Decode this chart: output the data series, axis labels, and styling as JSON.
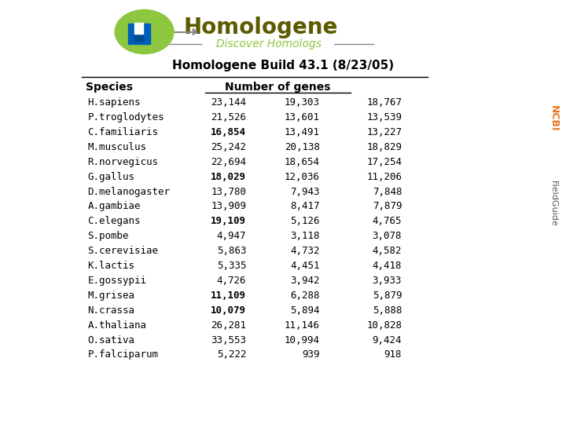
{
  "title": "Homologene Build 43.1 (8/23/05)",
  "header_species": "Species",
  "header_genes": "Number of genes",
  "species": [
    "H.sapiens",
    "P.troglodytes",
    "C.familiaris",
    "M.musculus",
    "R.norvegicus",
    "G.gallus",
    "D.melanogaster",
    "A.gambiae",
    "C.elegans",
    "S.pombe",
    "S.cerevisiae",
    "K.lactis",
    "E.gossypii",
    "M.grisea",
    "N.crassa",
    "A.thaliana",
    "O.sativa",
    "P.falciparum"
  ],
  "col1": [
    "23,144",
    "21,526",
    "16,854",
    "25,242",
    "22,694",
    "18,029",
    "13,780",
    "13,909",
    "19,109",
    "4,947",
    "5,863",
    "5,335",
    "4,726",
    "11,109",
    "10,079",
    "26,281",
    "33,553",
    "5,222"
  ],
  "col2": [
    "19,303",
    "13,601",
    "13,491",
    "20,138",
    "18,654",
    "12,036",
    "7,943",
    "8,417",
    "5,126",
    "3,118",
    "4,732",
    "4,451",
    "3,942",
    "6,288",
    "5,894",
    "11,146",
    "10,994",
    "939"
  ],
  "col3": [
    "18,767",
    "13,539",
    "13,227",
    "18,829",
    "17,254",
    "11,206",
    "7,848",
    "7,879",
    "4,765",
    "3,078",
    "4,582",
    "4,418",
    "3,933",
    "5,879",
    "5,888",
    "10,828",
    "9,424",
    "918"
  ],
  "bold_col1": [
    2,
    5,
    8,
    13,
    14
  ],
  "bg_color": "#ffffff",
  "text_color": "#000000",
  "title_color": "#000000",
  "ncbi_orange": "#e87722",
  "ncbi_field": "#555555",
  "logo_green": "#8dc63f",
  "logo_blue": "#005eb8",
  "logo_dark": "#004b8d",
  "arrow_color": "#888888",
  "homologene_color": "#5b5b00",
  "discover_color": "#8dc63f",
  "line_color": "#888888"
}
